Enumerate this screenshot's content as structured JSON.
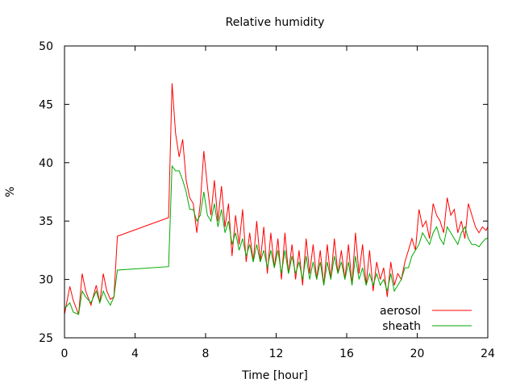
{
  "chart_data": {
    "type": "line",
    "title": "Relative humidity",
    "xlabel": "Time [hour]",
    "ylabel": "%",
    "xlim": [
      0,
      24
    ],
    "ylim": [
      25,
      50
    ],
    "xticks": [
      0,
      4,
      8,
      12,
      16,
      20,
      24
    ],
    "yticks": [
      25,
      30,
      35,
      40,
      45,
      50
    ],
    "grid": false,
    "legend_position": "bottom-right",
    "series": [
      {
        "name": "aerosol",
        "color": "#ff0000",
        "x": [
          0.0,
          0.3,
          0.5,
          0.8,
          1.0,
          1.2,
          1.5,
          1.8,
          2.0,
          2.2,
          2.4,
          2.6,
          2.8,
          3.0,
          5.9,
          6.1,
          6.3,
          6.5,
          6.7,
          6.9,
          7.1,
          7.3,
          7.5,
          7.7,
          7.9,
          8.1,
          8.3,
          8.5,
          8.7,
          8.9,
          9.1,
          9.3,
          9.5,
          9.7,
          9.9,
          10.1,
          10.3,
          10.5,
          10.7,
          10.9,
          11.1,
          11.3,
          11.5,
          11.7,
          11.9,
          12.1,
          12.3,
          12.5,
          12.7,
          12.9,
          13.1,
          13.3,
          13.5,
          13.7,
          13.9,
          14.1,
          14.3,
          14.5,
          14.7,
          14.9,
          15.1,
          15.3,
          15.5,
          15.7,
          15.9,
          16.1,
          16.3,
          16.5,
          16.7,
          16.9,
          17.1,
          17.3,
          17.5,
          17.7,
          17.9,
          18.1,
          18.3,
          18.5,
          18.7,
          18.9,
          19.1,
          19.3,
          19.5,
          19.7,
          19.9,
          20.1,
          20.3,
          20.5,
          20.7,
          20.9,
          21.1,
          21.3,
          21.5,
          21.7,
          21.9,
          22.1,
          22.3,
          22.5,
          22.7,
          22.9,
          23.1,
          23.3,
          23.5,
          23.7,
          23.9,
          24.0
        ],
        "values": [
          27.0,
          29.4,
          28.2,
          27.0,
          30.5,
          29.0,
          27.8,
          29.5,
          28.0,
          30.5,
          29.0,
          28.3,
          28.5,
          33.7,
          35.3,
          46.8,
          42.5,
          40.5,
          42.0,
          38.5,
          37.0,
          36.5,
          34.0,
          36.5,
          41.0,
          38.0,
          35.5,
          38.5,
          35.0,
          38.0,
          34.5,
          36.5,
          32.0,
          35.5,
          33.0,
          36.0,
          31.5,
          34.0,
          31.5,
          35.0,
          31.5,
          34.5,
          30.5,
          34.0,
          31.0,
          33.5,
          30.0,
          34.0,
          30.5,
          33.0,
          30.0,
          32.5,
          29.5,
          33.5,
          30.5,
          33.0,
          30.0,
          32.5,
          29.5,
          33.0,
          30.0,
          33.5,
          30.5,
          32.5,
          30.0,
          33.0,
          29.5,
          34.0,
          30.5,
          33.0,
          29.5,
          32.5,
          29.0,
          31.5,
          30.0,
          31.0,
          28.5,
          31.5,
          29.5,
          30.5,
          30.0,
          31.5,
          32.5,
          33.5,
          32.5,
          36.0,
          34.5,
          35.0,
          33.5,
          36.5,
          35.5,
          35.0,
          34.0,
          37.0,
          35.5,
          36.0,
          34.0,
          35.0,
          33.5,
          36.5,
          35.5,
          34.5,
          34.0,
          34.5,
          34.2,
          34.5
        ]
      },
      {
        "name": "sheath",
        "color": "#00aa00",
        "x": [
          0.0,
          0.3,
          0.5,
          0.8,
          1.0,
          1.2,
          1.5,
          1.8,
          2.0,
          2.2,
          2.4,
          2.6,
          2.8,
          3.0,
          5.9,
          6.1,
          6.3,
          6.5,
          6.7,
          6.9,
          7.1,
          7.3,
          7.5,
          7.7,
          7.9,
          8.1,
          8.3,
          8.5,
          8.7,
          8.9,
          9.1,
          9.3,
          9.5,
          9.7,
          9.9,
          10.1,
          10.3,
          10.5,
          10.7,
          10.9,
          11.1,
          11.3,
          11.5,
          11.7,
          11.9,
          12.1,
          12.3,
          12.5,
          12.7,
          12.9,
          13.1,
          13.3,
          13.5,
          13.7,
          13.9,
          14.1,
          14.3,
          14.5,
          14.7,
          14.9,
          15.1,
          15.3,
          15.5,
          15.7,
          15.9,
          16.1,
          16.3,
          16.5,
          16.7,
          16.9,
          17.1,
          17.3,
          17.5,
          17.7,
          17.9,
          18.1,
          18.3,
          18.5,
          18.7,
          18.9,
          19.1,
          19.3,
          19.5,
          19.7,
          19.9,
          20.1,
          20.3,
          20.5,
          20.7,
          20.9,
          21.1,
          21.3,
          21.5,
          21.7,
          21.9,
          22.1,
          22.3,
          22.5,
          22.7,
          22.9,
          23.1,
          23.3,
          23.5,
          23.7,
          23.9,
          24.0
        ],
        "values": [
          27.5,
          28.0,
          27.2,
          27.0,
          29.0,
          28.5,
          28.0,
          29.0,
          28.0,
          29.0,
          28.3,
          27.8,
          28.5,
          30.8,
          31.1,
          39.7,
          39.3,
          39.3,
          38.5,
          37.5,
          36.0,
          36.0,
          35.0,
          35.5,
          37.5,
          35.5,
          35.0,
          36.5,
          34.5,
          36.0,
          34.0,
          35.0,
          33.0,
          34.0,
          32.5,
          33.5,
          32.0,
          33.0,
          31.5,
          33.0,
          31.5,
          32.5,
          31.0,
          32.5,
          31.0,
          32.5,
          30.5,
          32.5,
          30.5,
          32.0,
          30.5,
          31.5,
          30.0,
          32.0,
          30.0,
          31.5,
          30.0,
          31.5,
          29.5,
          31.5,
          30.0,
          32.0,
          30.5,
          31.5,
          30.0,
          31.5,
          29.5,
          32.0,
          30.0,
          31.0,
          29.5,
          30.5,
          29.5,
          30.5,
          29.5,
          30.0,
          29.0,
          30.5,
          29.0,
          29.5,
          30.0,
          31.0,
          31.0,
          32.0,
          32.5,
          33.0,
          34.0,
          33.5,
          33.0,
          34.0,
          34.5,
          33.5,
          33.0,
          34.5,
          34.0,
          33.5,
          33.0,
          34.0,
          34.5,
          33.5,
          33.0,
          33.0,
          32.8,
          33.2,
          33.5,
          33.5
        ]
      }
    ]
  }
}
